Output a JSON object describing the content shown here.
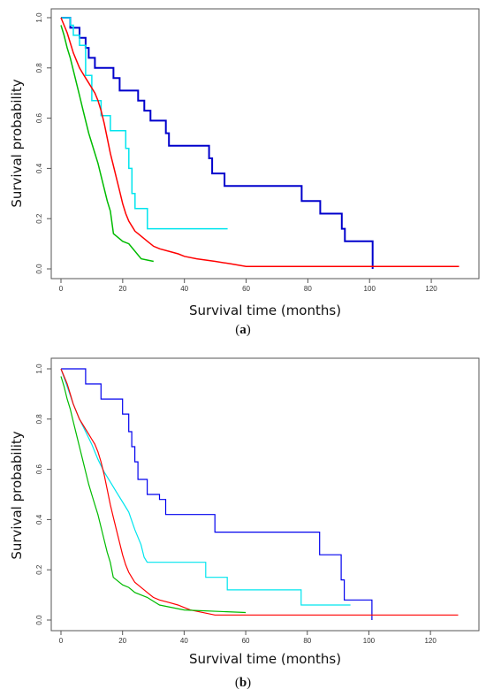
{
  "chart_data": [
    {
      "type": "line",
      "panel_label": "(a)",
      "panel_label_open": "(",
      "panel_label_letter": "a",
      "panel_label_close": ")",
      "xlabel": "Survival time (months)",
      "ylabel": "Survival probability",
      "xlim": [
        0,
        130
      ],
      "ylim": [
        0,
        1
      ],
      "xticks": [
        "0",
        "20",
        "40",
        "60",
        "80",
        "100",
        "120"
      ],
      "yticks": [
        "0.0",
        "0.2",
        "0.4",
        "0.6",
        "0.8",
        "1.0"
      ],
      "grid": false,
      "series": [
        {
          "color": "#0000cc",
          "width": 2,
          "x": [
            0,
            1,
            3,
            3,
            6,
            6,
            8,
            8,
            9,
            9,
            11,
            11,
            13,
            13,
            17,
            17,
            19,
            19,
            25,
            25,
            27,
            27,
            29,
            29,
            31,
            31,
            34,
            34,
            35,
            35,
            48,
            48,
            49,
            49,
            53,
            53,
            78,
            78,
            84,
            84,
            91,
            91,
            92,
            92,
            101,
            101
          ],
          "y": [
            1.0,
            1.0,
            1.0,
            0.96,
            0.96,
            0.92,
            0.92,
            0.88,
            0.88,
            0.84,
            0.84,
            0.8,
            0.8,
            0.8,
            0.8,
            0.76,
            0.76,
            0.71,
            0.71,
            0.67,
            0.67,
            0.63,
            0.63,
            0.59,
            0.59,
            0.59,
            0.59,
            0.54,
            0.54,
            0.49,
            0.49,
            0.44,
            0.44,
            0.38,
            0.38,
            0.33,
            0.33,
            0.27,
            0.27,
            0.22,
            0.22,
            0.16,
            0.16,
            0.11,
            0.11,
            0.0
          ]
        },
        {
          "color": "#00e5ee",
          "width": 1.5,
          "x": [
            0,
            3,
            3,
            4,
            4,
            6,
            6,
            8,
            8,
            10,
            10,
            13,
            13,
            16,
            16,
            21,
            21,
            22,
            22,
            23,
            23,
            24,
            24,
            28,
            28,
            54
          ],
          "y": [
            1.0,
            1.0,
            0.97,
            0.97,
            0.93,
            0.93,
            0.89,
            0.89,
            0.77,
            0.77,
            0.67,
            0.67,
            0.61,
            0.61,
            0.55,
            0.55,
            0.48,
            0.48,
            0.4,
            0.4,
            0.3,
            0.3,
            0.24,
            0.24,
            0.16,
            0.16
          ]
        },
        {
          "color": "#ff0000",
          "width": 1.5,
          "x": [
            0,
            1,
            2,
            3,
            4,
            5,
            6,
            7,
            8,
            9,
            10,
            11,
            12,
            13,
            14,
            15,
            16,
            17,
            18,
            19,
            20,
            21,
            22,
            23,
            24,
            25,
            26,
            28,
            30,
            32,
            35,
            38,
            40,
            44,
            50,
            55,
            60,
            129
          ],
          "y": [
            1.0,
            0.97,
            0.94,
            0.9,
            0.86,
            0.83,
            0.8,
            0.78,
            0.76,
            0.74,
            0.72,
            0.7,
            0.67,
            0.63,
            0.58,
            0.52,
            0.46,
            0.41,
            0.36,
            0.31,
            0.26,
            0.22,
            0.19,
            0.17,
            0.15,
            0.14,
            0.13,
            0.11,
            0.09,
            0.08,
            0.07,
            0.06,
            0.05,
            0.04,
            0.03,
            0.02,
            0.01,
            0.01
          ]
        },
        {
          "color": "#00bb00",
          "width": 1.5,
          "x": [
            0,
            1,
            2,
            3,
            4,
            5,
            6,
            7,
            8,
            9,
            10,
            11,
            12,
            13,
            14,
            15,
            16,
            17,
            18,
            20,
            22,
            26,
            30
          ],
          "y": [
            0.97,
            0.93,
            0.88,
            0.84,
            0.79,
            0.74,
            0.69,
            0.64,
            0.59,
            0.54,
            0.5,
            0.46,
            0.42,
            0.37,
            0.32,
            0.27,
            0.23,
            0.14,
            0.13,
            0.11,
            0.1,
            0.04,
            0.03
          ]
        }
      ]
    },
    {
      "type": "line",
      "panel_label": "(b)",
      "panel_label_open": "(",
      "panel_label_letter": "b",
      "panel_label_close": ")",
      "xlabel": "Survival time (months)",
      "ylabel": "Survival probability",
      "xlim": [
        0,
        130
      ],
      "ylim": [
        0,
        1
      ],
      "xticks": [
        "0",
        "20",
        "40",
        "60",
        "80",
        "100",
        "120"
      ],
      "yticks": [
        "0.0",
        "0.2",
        "0.4",
        "0.6",
        "0.8",
        "1.0"
      ],
      "grid": false,
      "series": [
        {
          "color": "#0000ee",
          "width": 1.2,
          "x": [
            0,
            8,
            8,
            13,
            13,
            20,
            20,
            22,
            22,
            23,
            23,
            24,
            24,
            25,
            25,
            28,
            28,
            32,
            32,
            34,
            34,
            36,
            36,
            50,
            50,
            84,
            84,
            91,
            91,
            92,
            92,
            101,
            101
          ],
          "y": [
            1.0,
            1.0,
            0.94,
            0.94,
            0.88,
            0.88,
            0.82,
            0.82,
            0.75,
            0.75,
            0.69,
            0.69,
            0.63,
            0.63,
            0.56,
            0.56,
            0.5,
            0.5,
            0.48,
            0.48,
            0.42,
            0.42,
            0.42,
            0.42,
            0.35,
            0.35,
            0.26,
            0.26,
            0.16,
            0.16,
            0.08,
            0.08,
            0.0
          ]
        },
        {
          "color": "#00e5ee",
          "width": 1.2,
          "x": [
            0,
            2,
            4,
            6,
            8,
            10,
            12,
            14,
            16,
            18,
            20,
            22,
            24,
            26,
            27,
            28,
            47,
            47,
            54,
            54,
            78,
            78,
            94
          ],
          "y": [
            1.0,
            0.93,
            0.86,
            0.8,
            0.75,
            0.7,
            0.64,
            0.59,
            0.55,
            0.51,
            0.47,
            0.43,
            0.36,
            0.3,
            0.25,
            0.23,
            0.23,
            0.17,
            0.17,
            0.12,
            0.12,
            0.06,
            0.06
          ]
        },
        {
          "color": "#ff0000",
          "width": 1.2,
          "x": [
            0,
            1,
            2,
            3,
            4,
            5,
            6,
            7,
            8,
            9,
            10,
            11,
            12,
            13,
            14,
            15,
            16,
            17,
            18,
            19,
            20,
            21,
            22,
            23,
            24,
            25,
            26,
            28,
            30,
            32,
            35,
            38,
            40,
            42,
            50,
            60,
            129
          ],
          "y": [
            1.0,
            0.97,
            0.94,
            0.9,
            0.86,
            0.83,
            0.8,
            0.78,
            0.76,
            0.74,
            0.72,
            0.7,
            0.67,
            0.63,
            0.58,
            0.52,
            0.46,
            0.41,
            0.36,
            0.31,
            0.26,
            0.22,
            0.19,
            0.17,
            0.15,
            0.14,
            0.13,
            0.11,
            0.09,
            0.08,
            0.07,
            0.06,
            0.05,
            0.04,
            0.02,
            0.02,
            0.02
          ]
        },
        {
          "color": "#00bb00",
          "width": 1.2,
          "x": [
            0,
            1,
            2,
            3,
            4,
            5,
            6,
            7,
            8,
            9,
            10,
            11,
            12,
            13,
            14,
            15,
            16,
            17,
            18,
            20,
            22,
            24,
            28,
            32,
            40,
            60
          ],
          "y": [
            0.97,
            0.93,
            0.88,
            0.84,
            0.79,
            0.74,
            0.69,
            0.64,
            0.59,
            0.54,
            0.5,
            0.46,
            0.42,
            0.37,
            0.32,
            0.27,
            0.23,
            0.17,
            0.16,
            0.14,
            0.13,
            0.11,
            0.09,
            0.06,
            0.04,
            0.03
          ]
        }
      ]
    }
  ]
}
